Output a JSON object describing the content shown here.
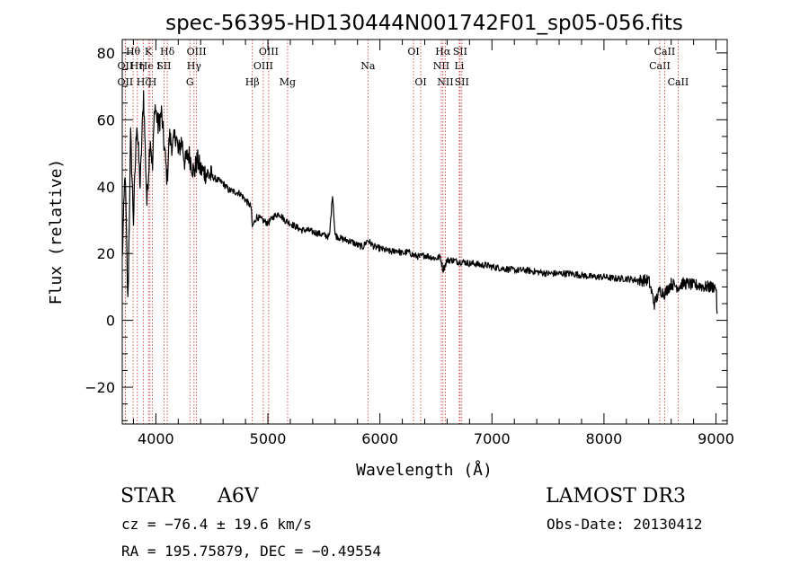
{
  "chart_data": {
    "type": "line",
    "title": "spec-56395-HD130444N001742F01_sp05-056.fits",
    "xlabel": "Wavelength (Å)",
    "ylabel": "Flux (relative)",
    "xlim": [
      3700,
      9100
    ],
    "ylim": [
      -31,
      84
    ],
    "xticks": [
      4000,
      5000,
      6000,
      7000,
      8000,
      9000
    ],
    "yticks": [
      -20,
      0,
      20,
      40,
      60,
      80
    ],
    "grid": false,
    "line_color": "#000000",
    "marker_color": "#cc3333",
    "series": [
      {
        "name": "flux",
        "x": [
          3700,
          3725,
          3750,
          3775,
          3800,
          3830,
          3860,
          3890,
          3920,
          3950,
          3970,
          3990,
          4020,
          4050,
          4080,
          4101,
          4120,
          4150,
          4180,
          4200,
          4230,
          4260,
          4290,
          4310,
          4340,
          4370,
          4400,
          4450,
          4500,
          4550,
          4600,
          4650,
          4700,
          4750,
          4800,
          4850,
          4861,
          4900,
          4950,
          5000,
          5050,
          5100,
          5150,
          5200,
          5250,
          5300,
          5350,
          5400,
          5450,
          5500,
          5550,
          5577,
          5600,
          5650,
          5700,
          5750,
          5800,
          5850,
          5890,
          5950,
          6000,
          6050,
          6100,
          6150,
          6200,
          6250,
          6300,
          6350,
          6400,
          6450,
          6500,
          6540,
          6563,
          6600,
          6650,
          6700,
          6750,
          6800,
          6850,
          6900,
          6950,
          7000,
          7100,
          7200,
          7300,
          7400,
          7500,
          7600,
          7700,
          7800,
          7900,
          8000,
          8100,
          8200,
          8300,
          8400,
          8450,
          8498,
          8542,
          8600,
          8662,
          8700,
          8750,
          8800,
          8850,
          8900,
          8950,
          9000,
          9010
        ],
        "values": [
          18,
          45,
          5,
          55,
          30,
          60,
          40,
          68,
          35,
          55,
          45,
          65,
          58,
          62,
          50,
          42,
          55,
          52,
          56,
          50,
          54,
          47,
          50,
          48,
          44,
          48,
          45,
          44,
          43,
          42,
          41,
          39,
          38.5,
          38,
          36,
          34,
          28,
          31,
          30,
          29,
          31,
          32,
          30,
          29,
          28,
          27,
          27,
          26.5,
          26,
          25.5,
          25,
          38,
          25.5,
          24.5,
          24,
          23.5,
          22.5,
          22,
          24,
          22,
          21.5,
          21,
          20.5,
          21,
          20,
          20.5,
          19.5,
          19,
          19.5,
          19,
          18.5,
          19,
          15,
          18,
          18,
          17.5,
          17.5,
          17,
          17,
          16.5,
          16.5,
          16,
          15.5,
          15,
          15,
          14.5,
          14,
          14,
          14,
          13.5,
          13,
          13,
          12.5,
          12.5,
          12,
          12,
          5,
          9,
          8,
          11,
          10,
          11,
          11,
          10.5,
          10.5,
          10,
          10,
          10,
          2
        ]
      }
    ],
    "lines": [
      {
        "label": "OII",
        "x": 3727,
        "row": 2
      },
      {
        "label": "OII",
        "x": 3727,
        "row": 3
      },
      {
        "label": "Hθ",
        "x": 3797,
        "row": 1
      },
      {
        "label": "Hη",
        "x": 3835,
        "row": 2
      },
      {
        "label": "Hζ",
        "x": 3889,
        "row": 3
      },
      {
        "label": "K",
        "x": 3934,
        "row": 1
      },
      {
        "label": "He I",
        "x": 3947,
        "row": 2
      },
      {
        "label": "H",
        "x": 3969,
        "row": 3
      },
      {
        "label": "SII",
        "x": 4072,
        "row": 2
      },
      {
        "label": "Hδ",
        "x": 4102,
        "row": 1
      },
      {
        "label": "G",
        "x": 4304,
        "row": 3
      },
      {
        "label": "Hγ",
        "x": 4341,
        "row": 2
      },
      {
        "label": "OIII",
        "x": 4363,
        "row": 1
      },
      {
        "label": "Hβ",
        "x": 4861,
        "row": 3
      },
      {
        "label": "OIII",
        "x": 4959,
        "row": 2
      },
      {
        "label": "OIII",
        "x": 5007,
        "row": 1
      },
      {
        "label": "Mg",
        "x": 5176,
        "row": 3
      },
      {
        "label": "Na",
        "x": 5893,
        "row": 2
      },
      {
        "label": "OI",
        "x": 6300,
        "row": 1
      },
      {
        "label": "OI",
        "x": 6364,
        "row": 3
      },
      {
        "label": "NII",
        "x": 6548,
        "row": 2
      },
      {
        "label": "Hα",
        "x": 6563,
        "row": 1
      },
      {
        "label": "NII",
        "x": 6584,
        "row": 3
      },
      {
        "label": "Li",
        "x": 6708,
        "row": 2
      },
      {
        "label": "SII",
        "x": 6716,
        "row": 1
      },
      {
        "label": "SII",
        "x": 6731,
        "row": 3
      },
      {
        "label": "CaII",
        "x": 8498,
        "row": 2
      },
      {
        "label": "CaII",
        "x": 8542,
        "row": 1
      },
      {
        "label": "CaII",
        "x": 8662,
        "row": 3
      }
    ]
  },
  "info": {
    "class_label": "STAR",
    "subclass": "A6V",
    "survey": "LAMOST DR3",
    "cz": "cz = −76.4 ± 19.6 km/s",
    "obs_date": "Obs-Date: 20130412",
    "coords": "RA = 195.75879, DEC =  −0.49554"
  }
}
